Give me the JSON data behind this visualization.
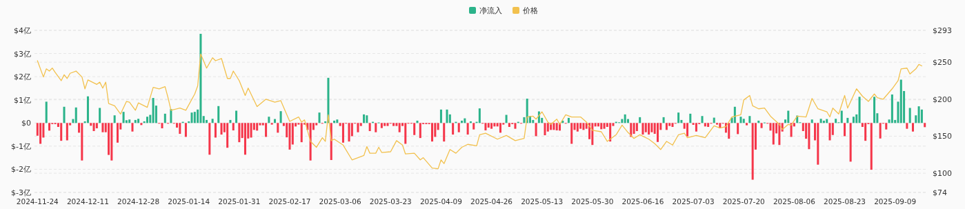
{
  "chart_data": {
    "type": "bar",
    "legend": "top",
    "grid": "y",
    "xlim": [
      "2024-11-23",
      "2025-09-20"
    ],
    "xticks": [
      "2024-11-24",
      "2024-12-11",
      "2024-12-28",
      "2025-01-14",
      "2025-01-31",
      "2025-02-17",
      "2025-03-06",
      "2025-03-23",
      "2025-04-09",
      "2025-04-26",
      "2025-05-13",
      "2025-05-30",
      "2025-06-16",
      "2025-07-03",
      "2025-07-20",
      "2025-08-06",
      "2025-08-23",
      "2025-09-09"
    ],
    "ylim": [
      -3,
      4
    ],
    "yticks": [
      {
        "value": -3,
        "label": "$-3亿"
      },
      {
        "value": -2,
        "label": "$-2亿"
      },
      {
        "value": -1,
        "label": "$-1亿"
      },
      {
        "value": 0,
        "label": "$0"
      },
      {
        "value": 1,
        "label": "$1亿"
      },
      {
        "value": 2,
        "label": "$2亿"
      },
      {
        "value": 3,
        "label": "$3亿"
      },
      {
        "value": 4,
        "label": "$4亿"
      }
    ],
    "y2lim": [
      74,
      293
    ],
    "y2ticks": [
      {
        "value": 74,
        "label": "$74"
      },
      {
        "value": 100,
        "label": "$100"
      },
      {
        "value": 150,
        "label": "$150"
      },
      {
        "value": 200,
        "label": "$200"
      },
      {
        "value": 250,
        "label": "$250"
      },
      {
        "value": 293,
        "label": "$293"
      }
    ],
    "series": [
      {
        "name": "净流入",
        "color": "#2bb38a",
        "x": [
          "2024-11-24",
          "2024-11-25",
          "2024-11-26",
          "2024-11-27",
          "2024-11-28",
          "2024-11-29",
          "2024-11-30",
          "2024-12-01",
          "2024-12-02",
          "2024-12-03",
          "2024-12-04",
          "2024-12-05",
          "2024-12-06",
          "2024-12-07",
          "2024-12-08",
          "2024-12-09",
          "2024-12-10",
          "2024-12-11",
          "2024-12-12",
          "2024-12-13",
          "2024-12-14",
          "2024-12-15",
          "2024-12-16",
          "2024-12-17",
          "2024-12-18",
          "2024-12-19",
          "2024-12-20",
          "2024-12-21",
          "2024-12-22",
          "2024-12-23",
          "2024-12-24",
          "2024-12-25",
          "2024-12-26",
          "2024-12-27",
          "2024-12-28",
          "2024-12-29",
          "2024-12-30",
          "2024-12-31",
          "2025-01-01",
          "2025-01-02",
          "2025-01-03",
          "2025-01-04",
          "2025-01-05",
          "2025-01-06",
          "2025-01-07",
          "2025-01-08",
          "2025-01-09",
          "2025-01-10",
          "2025-01-11",
          "2025-01-12",
          "2025-01-13",
          "2025-01-14",
          "2025-01-15",
          "2025-01-16",
          "2025-01-17",
          "2025-01-18",
          "2025-01-19",
          "2025-01-20",
          "2025-01-21",
          "2025-01-22",
          "2025-01-23",
          "2025-01-24",
          "2025-01-25",
          "2025-01-26",
          "2025-01-27",
          "2025-01-28",
          "2025-01-29",
          "2025-01-30",
          "2025-01-31",
          "2025-02-01",
          "2025-02-02",
          "2025-02-03",
          "2025-02-04",
          "2025-02-05",
          "2025-02-06",
          "2025-02-07",
          "2025-02-08",
          "2025-02-09",
          "2025-02-10",
          "2025-02-11",
          "2025-02-12",
          "2025-02-13",
          "2025-02-14",
          "2025-02-15",
          "2025-02-16",
          "2025-02-17",
          "2025-02-18",
          "2025-02-19",
          "2025-02-20",
          "2025-02-21",
          "2025-02-22",
          "2025-02-23",
          "2025-02-24",
          "2025-02-25",
          "2025-02-26",
          "2025-02-27",
          "2025-02-28",
          "2025-03-01",
          "2025-03-02",
          "2025-03-03",
          "2025-03-04",
          "2025-03-05",
          "2025-03-06",
          "2025-03-07",
          "2025-03-08",
          "2025-03-09",
          "2025-03-10",
          "2025-03-11",
          "2025-03-12",
          "2025-03-13",
          "2025-03-14",
          "2025-03-15",
          "2025-03-16",
          "2025-03-17",
          "2025-03-18",
          "2025-03-19",
          "2025-03-20",
          "2025-03-21",
          "2025-03-22",
          "2025-03-23",
          "2025-03-24",
          "2025-03-25",
          "2025-03-26",
          "2025-03-27",
          "2025-03-28",
          "2025-03-29",
          "2025-03-30",
          "2025-03-31",
          "2025-04-01",
          "2025-04-02",
          "2025-04-03",
          "2025-04-04",
          "2025-04-05",
          "2025-04-06",
          "2025-04-07",
          "2025-04-08",
          "2025-04-09",
          "2025-04-10",
          "2025-04-11",
          "2025-04-12",
          "2025-04-13",
          "2025-04-14",
          "2025-04-15",
          "2025-04-16",
          "2025-04-17",
          "2025-04-18",
          "2025-04-19",
          "2025-04-20",
          "2025-04-21",
          "2025-04-22",
          "2025-04-23",
          "2025-04-24",
          "2025-04-25",
          "2025-04-26",
          "2025-04-27",
          "2025-04-28",
          "2025-04-29",
          "2025-04-30",
          "2025-05-01",
          "2025-05-02",
          "2025-05-03",
          "2025-05-04",
          "2025-05-05",
          "2025-05-06",
          "2025-05-07",
          "2025-05-08",
          "2025-05-09",
          "2025-05-10",
          "2025-05-11",
          "2025-05-12",
          "2025-05-13",
          "2025-05-14",
          "2025-05-15",
          "2025-05-16",
          "2025-05-17",
          "2025-05-18",
          "2025-05-19",
          "2025-05-20",
          "2025-05-21",
          "2025-05-22",
          "2025-05-23",
          "2025-05-24",
          "2025-05-25",
          "2025-05-26",
          "2025-05-27",
          "2025-05-28",
          "2025-05-29",
          "2025-05-30",
          "2025-05-31",
          "2025-06-01",
          "2025-06-02",
          "2025-06-03",
          "2025-06-04",
          "2025-06-05",
          "2025-06-06",
          "2025-06-07",
          "2025-06-08",
          "2025-06-09",
          "2025-06-10",
          "2025-06-11",
          "2025-06-12",
          "2025-06-13",
          "2025-06-14",
          "2025-06-15",
          "2025-06-16",
          "2025-06-17",
          "2025-06-18",
          "2025-06-19",
          "2025-06-20",
          "2025-06-21",
          "2025-06-22",
          "2025-06-23",
          "2025-06-24",
          "2025-06-25",
          "2025-06-26",
          "2025-06-27",
          "2025-06-28",
          "2025-06-29",
          "2025-06-30",
          "2025-07-01",
          "2025-07-02",
          "2025-07-03",
          "2025-07-04",
          "2025-07-05",
          "2025-07-06",
          "2025-07-07",
          "2025-07-08",
          "2025-07-09",
          "2025-07-10",
          "2025-07-11",
          "2025-07-12",
          "2025-07-13",
          "2025-07-14",
          "2025-07-15",
          "2025-07-16",
          "2025-07-17",
          "2025-07-18",
          "2025-07-19",
          "2025-07-20",
          "2025-07-21",
          "2025-07-22",
          "2025-07-23",
          "2025-07-24",
          "2025-07-25",
          "2025-07-26",
          "2025-07-27",
          "2025-07-28",
          "2025-07-29",
          "2025-07-30",
          "2025-07-31",
          "2025-08-01",
          "2025-08-02",
          "2025-08-03",
          "2025-08-04",
          "2025-08-05",
          "2025-08-06",
          "2025-08-07",
          "2025-08-08",
          "2025-08-09",
          "2025-08-10",
          "2025-08-11",
          "2025-08-12",
          "2025-08-13",
          "2025-08-14",
          "2025-08-15",
          "2025-08-16",
          "2025-08-17",
          "2025-08-18",
          "2025-08-19",
          "2025-08-20",
          "2025-08-21",
          "2025-08-22",
          "2025-08-23",
          "2025-08-24",
          "2025-08-25",
          "2025-08-26",
          "2025-08-27",
          "2025-08-28",
          "2025-08-29",
          "2025-08-30",
          "2025-08-31",
          "2025-09-01",
          "2025-09-02",
          "2025-09-03",
          "2025-09-04",
          "2025-09-05",
          "2025-09-06",
          "2025-09-07",
          "2025-09-08",
          "2025-09-09",
          "2025-09-10",
          "2025-09-11",
          "2025-09-12",
          "2025-09-13",
          "2025-09-14",
          "2025-09-15",
          "2025-09-16",
          "2025-09-17",
          "2025-09-18",
          "2025-09-19"
        ],
        "values": [
          -0.55,
          -0.9,
          -0.63,
          0.92,
          -0.33,
          -0.05,
          -0.05,
          -0.17,
          -0.77,
          0.7,
          -0.75,
          -0.1,
          0.17,
          0.67,
          -0.42,
          -1.62,
          0.07,
          1.15,
          -0.12,
          -0.35,
          -0.23,
          0.65,
          -0.4,
          -0.4,
          -1.38,
          -1.62,
          0.33,
          -0.85,
          -0.28,
          0.48,
          0.12,
          0.15,
          -0.37,
          0.13,
          0.18,
          -0.09,
          0.07,
          0.27,
          0.35,
          1.08,
          0.75,
          -0.03,
          -0.23,
          0.4,
          -0.03,
          0.6,
          -0.03,
          -0.2,
          -0.47,
          0.05,
          -0.6,
          0.07,
          0.45,
          0.48,
          0.58,
          3.85,
          0.3,
          0.13,
          -1.37,
          0.18,
          -0.63,
          0.73,
          -0.5,
          -0.4,
          -1.07,
          0.13,
          -0.32,
          0.53,
          -0.83,
          -0.65,
          -1.37,
          -0.67,
          -0.63,
          -0.3,
          -0.33,
          -0.1,
          -0.1,
          -0.6,
          0.27,
          -0.07,
          0.17,
          -0.42,
          0.51,
          -0.13,
          -0.62,
          -1.15,
          -0.93,
          -0.15,
          -0.07,
          -0.83,
          -0.07,
          -0.3,
          -1.62,
          -0.3,
          -0.1,
          0.45,
          -0.03,
          0.07,
          1.95,
          -1.6,
          0.1,
          0.15,
          -0.13,
          -0.85,
          -0.03,
          -0.8,
          -0.57,
          -0.03,
          -0.4,
          -0.13,
          0.37,
          0.33,
          -0.35,
          0.05,
          -0.4,
          0.02,
          -0.22,
          -0.13,
          -0.13,
          -0.03,
          -0.13,
          -0.13,
          -0.4,
          -0.13,
          -0.9,
          -0.03,
          -0.02,
          -0.52,
          0.1,
          -0.65,
          -0.05,
          -0.05,
          -0.05,
          -0.8,
          -0.6,
          -0.3,
          0.58,
          -0.8,
          0.58,
          0.37,
          -0.5,
          0.05,
          -0.4,
          0.1,
          0.2,
          -0.5,
          0.07,
          -0.28,
          0.05,
          0.63,
          -0.02,
          -0.32,
          -0.2,
          -0.25,
          -0.15,
          -0.15,
          -0.42,
          -0.07,
          0.35,
          -0.17,
          -0.05,
          -0.25,
          0.05,
          -0.02,
          0.25,
          1.05,
          0.3,
          0.13,
          -0.57,
          0.5,
          0.22,
          -0.53,
          -0.37,
          -0.3,
          -0.3,
          -0.32,
          -0.33,
          0.1,
          -0.02,
          0.22,
          -0.9,
          -0.3,
          -0.37,
          -0.25,
          -0.3,
          -0.25,
          -0.7,
          -0.95,
          -0.15,
          -0.15,
          -0.27,
          -0.25,
          -0.17,
          -0.8,
          -0.13,
          0.05,
          0.03,
          0.17,
          0.37,
          0.17,
          -0.6,
          -0.47,
          -0.35,
          0.25,
          -0.5,
          -0.4,
          -0.5,
          -0.4,
          -0.47,
          -0.82,
          -0.3,
          0.25,
          -0.3,
          -0.13,
          -0.17,
          -0.03,
          0.45,
          0.13,
          -0.25,
          -0.58,
          0.4,
          -0.08,
          -0.37,
          -0.05,
          0.3,
          -0.15,
          -0.17,
          -0.02,
          0.23,
          -0.07,
          -0.23,
          -0.02,
          -0.42,
          -0.68,
          0.23,
          0.7,
          -0.48,
          0.27,
          0.18,
          -0.1,
          0.3,
          -2.45,
          -1.15,
          0.1,
          -0.22,
          0.02,
          -0.02,
          -0.33,
          -0.93,
          -0.45,
          -0.95,
          -0.37,
          0.15,
          0.53,
          -0.6,
          -0.15,
          0.32,
          0.03,
          -0.35,
          -0.68,
          -1.13,
          0.15,
          -0.75,
          -1.8,
          0.18,
          0.1,
          0.17,
          -0.75,
          -0.52,
          0.18,
          0.03,
          0.53,
          -0.57,
          0.22,
          -1.67,
          0.27,
          0.37,
          1.13,
          -0.17,
          -0.77,
          -0.05,
          -2.02,
          1.13,
          0.42,
          -0.67,
          -0.02,
          -0.28,
          0.15,
          1.23,
          0.13,
          0.92,
          1.87,
          1.38,
          -0.25,
          0.65,
          -0.37,
          0.33,
          0.72,
          0.58,
          -0.18
        ],
        "colors": [
          "#f5364a",
          "#f5364a",
          "#f5364a",
          "#2bb38a",
          "#f5364a",
          "#f5364a",
          "#f5364a",
          "#f5364a",
          "#f5364a",
          "#2bb38a",
          "#f5364a",
          "#f5364a",
          "#2bb38a",
          "#2bb38a",
          "#f5364a",
          "#f5364a",
          "#2bb38a",
          "#2bb38a",
          "#f5364a",
          "#f5364a",
          "#f5364a",
          "#2bb38a",
          "#f5364a",
          "#f5364a",
          "#f5364a",
          "#f5364a",
          "#2bb38a",
          "#f5364a",
          "#f5364a",
          "#2bb38a",
          "#2bb38a",
          "#2bb38a",
          "#f5364a",
          "#2bb38a",
          "#2bb38a",
          "#f5364a",
          "#2bb38a",
          "#2bb38a",
          "#2bb38a",
          "#2bb38a",
          "#2bb38a",
          "#f5364a",
          "#f5364a",
          "#2bb38a",
          "#f5364a",
          "#2bb38a",
          "#f5364a",
          "#f5364a",
          "#f5364a",
          "#2bb38a",
          "#f5364a",
          "#2bb38a",
          "#2bb38a",
          "#2bb38a",
          "#2bb38a",
          "#2bb38a",
          "#2bb38a",
          "#2bb38a",
          "#f5364a",
          "#2bb38a",
          "#f5364a",
          "#2bb38a",
          "#f5364a",
          "#f5364a",
          "#f5364a",
          "#2bb38a",
          "#f5364a",
          "#2bb38a",
          "#f5364a",
          "#f5364a",
          "#f5364a",
          "#f5364a",
          "#f5364a",
          "#f5364a",
          "#f5364a",
          "#f5364a",
          "#f5364a",
          "#f5364a",
          "#2bb38a",
          "#f5364a",
          "#2bb38a",
          "#f5364a",
          "#2bb38a",
          "#f5364a",
          "#f5364a",
          "#f5364a",
          "#f5364a",
          "#f5364a",
          "#f5364a",
          "#f5364a",
          "#f5364a",
          "#f5364a",
          "#f5364a",
          "#f5364a",
          "#f5364a",
          "#2bb38a",
          "#f5364a",
          "#2bb38a",
          "#2bb38a",
          "#f5364a",
          "#2bb38a",
          "#2bb38a",
          "#f5364a",
          "#f5364a",
          "#f5364a",
          "#f5364a",
          "#f5364a",
          "#f5364a",
          "#f5364a",
          "#f5364a",
          "#2bb38a",
          "#2bb38a",
          "#f5364a",
          "#2bb38a",
          "#f5364a",
          "#2bb38a",
          "#f5364a",
          "#f5364a",
          "#f5364a",
          "#f5364a",
          "#f5364a",
          "#f5364a",
          "#f5364a",
          "#f5364a",
          "#f5364a",
          "#f5364a",
          "#f5364a",
          "#f5364a",
          "#2bb38a",
          "#f5364a",
          "#f5364a",
          "#f5364a",
          "#f5364a",
          "#f5364a",
          "#f5364a",
          "#f5364a",
          "#2bb38a",
          "#f5364a",
          "#2bb38a",
          "#2bb38a",
          "#f5364a",
          "#2bb38a",
          "#f5364a",
          "#2bb38a",
          "#2bb38a",
          "#f5364a",
          "#2bb38a",
          "#f5364a",
          "#2bb38a",
          "#2bb38a",
          "#f5364a",
          "#f5364a",
          "#f5364a",
          "#f5364a",
          "#f5364a",
          "#f5364a",
          "#f5364a",
          "#f5364a",
          "#2bb38a",
          "#f5364a",
          "#f5364a",
          "#f5364a",
          "#2bb38a",
          "#f5364a",
          "#2bb38a",
          "#2bb38a",
          "#2bb38a",
          "#2bb38a",
          "#f5364a",
          "#2bb38a",
          "#2bb38a",
          "#f5364a",
          "#f5364a",
          "#f5364a",
          "#f5364a",
          "#f5364a",
          "#f5364a",
          "#2bb38a",
          "#f5364a",
          "#2bb38a",
          "#f5364a",
          "#f5364a",
          "#f5364a",
          "#f5364a",
          "#f5364a",
          "#f5364a",
          "#f5364a",
          "#f5364a",
          "#f5364a",
          "#f5364a",
          "#f5364a",
          "#f5364a",
          "#f5364a",
          "#f5364a",
          "#f5364a",
          "#2bb38a",
          "#2bb38a",
          "#2bb38a",
          "#2bb38a",
          "#2bb38a",
          "#f5364a",
          "#f5364a",
          "#f5364a",
          "#2bb38a",
          "#f5364a",
          "#f5364a",
          "#f5364a",
          "#f5364a",
          "#f5364a",
          "#f5364a",
          "#f5364a",
          "#2bb38a",
          "#f5364a",
          "#f5364a",
          "#f5364a",
          "#f5364a",
          "#2bb38a",
          "#2bb38a",
          "#f5364a",
          "#f5364a",
          "#2bb38a",
          "#f5364a",
          "#f5364a",
          "#f5364a",
          "#2bb38a",
          "#f5364a",
          "#f5364a",
          "#f5364a",
          "#2bb38a",
          "#f5364a",
          "#f5364a",
          "#f5364a",
          "#f5364a",
          "#f5364a",
          "#2bb38a",
          "#2bb38a",
          "#f5364a",
          "#2bb38a",
          "#2bb38a",
          "#f5364a",
          "#2bb38a",
          "#f5364a",
          "#f5364a",
          "#2bb38a",
          "#f5364a",
          "#2bb38a",
          "#f5364a",
          "#f5364a",
          "#f5364a",
          "#f5364a",
          "#f5364a",
          "#f5364a",
          "#2bb38a",
          "#2bb38a",
          "#f5364a",
          "#f5364a",
          "#2bb38a",
          "#2bb38a",
          "#f5364a",
          "#f5364a",
          "#f5364a",
          "#2bb38a",
          "#f5364a",
          "#f5364a",
          "#2bb38a",
          "#2bb38a",
          "#2bb38a",
          "#f5364a",
          "#f5364a",
          "#2bb38a",
          "#2bb38a",
          "#2bb38a",
          "#f5364a",
          "#2bb38a",
          "#f5364a",
          "#2bb38a",
          "#2bb38a",
          "#2bb38a",
          "#f5364a",
          "#f5364a",
          "#f5364a",
          "#f5364a",
          "#2bb38a",
          "#2bb38a",
          "#f5364a",
          "#f5364a",
          "#f5364a",
          "#2bb38a",
          "#2bb38a",
          "#2bb38a",
          "#2bb38a",
          "#2bb38a",
          "#2bb38a",
          "#f5364a",
          "#2bb38a",
          "#f5364a",
          "#2bb38a",
          "#2bb38a",
          "#2bb38a",
          "#f5364a"
        ]
      },
      {
        "name": "价格",
        "type": "line",
        "axis": "y2",
        "color": "#f2c14e",
        "x": [
          "2024-11-24",
          "2024-11-26",
          "2024-11-27",
          "2024-11-28",
          "2024-11-29",
          "2024-11-30",
          "2024-12-02",
          "2024-12-03",
          "2024-12-04",
          "2024-12-05",
          "2024-12-07",
          "2024-12-09",
          "2024-12-10",
          "2024-12-11",
          "2024-12-14",
          "2024-12-15",
          "2024-12-16",
          "2024-12-17",
          "2024-12-18",
          "2024-12-20",
          "2024-12-22",
          "2024-12-24",
          "2024-12-25",
          "2024-12-27",
          "2024-12-28",
          "2024-12-31",
          "2025-01-02",
          "2025-01-04",
          "2025-01-06",
          "2025-01-07",
          "2025-01-08",
          "2025-01-11",
          "2025-01-13",
          "2025-01-16",
          "2025-01-17",
          "2025-01-18",
          "2025-01-20",
          "2025-01-22",
          "2025-01-23",
          "2025-01-25",
          "2025-01-27",
          "2025-01-28",
          "2025-01-29",
          "2025-01-31",
          "2025-02-02",
          "2025-02-03",
          "2025-02-06",
          "2025-02-09",
          "2025-02-12",
          "2025-02-14",
          "2025-02-17",
          "2025-02-20",
          "2025-02-21",
          "2025-02-22",
          "2025-02-24",
          "2025-02-26",
          "2025-02-28",
          "2025-03-01",
          "2025-03-02",
          "2025-03-03",
          "2025-03-04",
          "2025-03-07",
          "2025-03-10",
          "2025-03-14",
          "2025-03-15",
          "2025-03-16",
          "2025-03-18",
          "2025-03-19",
          "2025-03-20",
          "2025-03-23",
          "2025-03-25",
          "2025-03-27",
          "2025-03-28",
          "2025-03-31",
          "2025-04-02",
          "2025-04-03",
          "2025-04-06",
          "2025-04-08",
          "2025-04-09",
          "2025-04-10",
          "2025-04-12",
          "2025-04-14",
          "2025-04-16",
          "2025-04-18",
          "2025-04-21",
          "2025-04-22",
          "2025-04-24",
          "2025-04-28",
          "2025-05-01",
          "2025-05-04",
          "2025-05-07",
          "2025-05-08",
          "2025-05-10",
          "2025-05-11",
          "2025-05-13",
          "2025-05-15",
          "2025-05-16",
          "2025-05-18",
          "2025-05-19",
          "2025-05-21",
          "2025-05-23",
          "2025-05-26",
          "2025-05-28",
          "2025-05-30",
          "2025-06-02",
          "2025-06-04",
          "2025-06-07",
          "2025-06-09",
          "2025-06-11",
          "2025-06-13",
          "2025-06-15",
          "2025-06-18",
          "2025-06-20",
          "2025-06-22",
          "2025-06-24",
          "2025-06-26",
          "2025-06-28",
          "2025-06-30",
          "2025-07-01",
          "2025-07-04",
          "2025-07-07",
          "2025-07-10",
          "2025-07-12",
          "2025-07-14",
          "2025-07-16",
          "2025-07-19",
          "2025-07-20",
          "2025-07-22",
          "2025-07-23",
          "2025-07-25",
          "2025-07-27",
          "2025-07-29",
          "2025-08-01",
          "2025-08-02",
          "2025-08-04",
          "2025-08-05",
          "2025-08-07",
          "2025-08-10",
          "2025-08-12",
          "2025-08-14",
          "2025-08-17",
          "2025-08-18",
          "2025-08-19",
          "2025-08-21",
          "2025-08-23",
          "2025-08-24",
          "2025-08-27",
          "2025-08-29",
          "2025-08-31",
          "2025-09-02",
          "2025-09-03",
          "2025-09-05",
          "2025-09-08",
          "2025-09-10",
          "2025-09-11",
          "2025-09-13",
          "2025-09-14",
          "2025-09-16",
          "2025-09-17",
          "2025-09-18"
        ],
        "values": [
          252,
          230,
          241,
          238,
          242,
          236,
          225,
          233,
          228,
          235,
          238,
          230,
          214,
          226,
          220,
          223,
          215,
          223,
          194,
          191,
          180,
          197,
          196,
          185,
          195,
          189,
          216,
          214,
          217,
          202,
          185,
          188,
          185,
          207,
          218,
          261,
          242,
          256,
          252,
          255,
          228,
          228,
          238,
          225,
          205,
          215,
          190,
          200,
          196,
          198,
          170,
          176,
          169,
          172,
          143,
          135,
          148,
          143,
          179,
          144,
          146,
          138,
          118,
          124,
          136,
          127,
          127,
          135,
          128,
          129,
          144,
          138,
          126,
          127,
          118,
          121,
          107,
          106,
          118,
          113,
          132,
          127,
          135,
          139,
          137,
          152,
          154,
          146,
          151,
          144,
          147,
          176,
          177,
          173,
          183,
          169,
          166,
          173,
          166,
          179,
          176,
          176,
          169,
          158,
          156,
          143,
          152,
          165,
          155,
          147,
          152,
          146,
          140,
          132,
          143,
          138,
          152,
          154,
          148,
          151,
          148,
          164,
          161,
          163,
          176,
          179,
          199,
          205,
          191,
          187,
          188,
          177,
          166,
          159,
          166,
          165,
          177,
          176,
          201,
          187,
          183,
          176,
          188,
          180,
          205,
          188,
          214,
          204,
          197,
          207,
          202,
          200,
          214,
          225,
          241,
          242,
          234,
          241,
          247,
          245
        ]
      }
    ]
  }
}
